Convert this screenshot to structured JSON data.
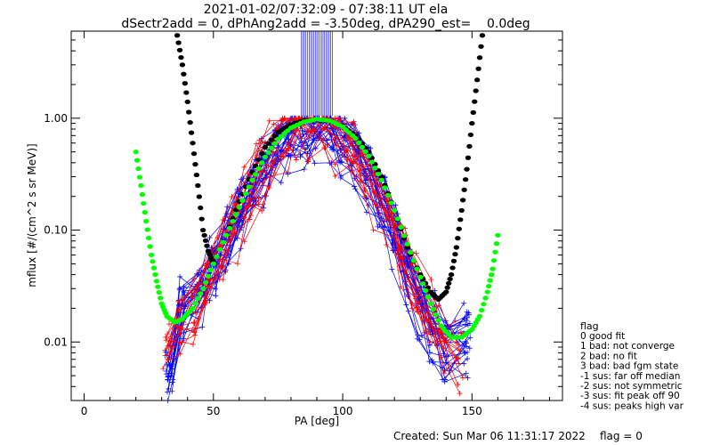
{
  "header": {
    "line1": "2021-01-02/07:32:09 - 07:38:11 UT ela",
    "line2": "dSectr2add = 0, dPhAng2add = -3.50deg, dPA290_est=    0.0deg"
  },
  "footer": {
    "created": "Created: Sun Mar 06 11:31:17 2022",
    "flag": "flag = 0"
  },
  "legend": {
    "title": "flag",
    "items": [
      " 0 good fit",
      " 1 bad: not converge",
      " 2 bad: no fit",
      " 3 bad: bad fgm state",
      "-1 sus: far off median",
      "-2 sus: not symmetric",
      "-3 sus: fit peak off 90",
      "-4 sus: peaks high var"
    ]
  },
  "colors": {
    "red": "#ff0000",
    "blue": "#0000ff",
    "black": "#000000",
    "green": "#00ff00"
  },
  "chart_data": {
    "type": "line",
    "title": "",
    "xlabel": "PA [deg]",
    "ylabel": "mflux [#/(cm^2 s sr MeV)]",
    "xlim": [
      -5,
      185
    ],
    "ylim": [
      0.003,
      6.0
    ],
    "yscale": "log",
    "xticks": [
      0,
      50,
      100,
      150
    ],
    "yticks": [
      {
        "value": 0.01,
        "label": "0.01"
      },
      {
        "value": 0.1,
        "label": "0.10"
      },
      {
        "value": 1.0,
        "label": "1.00"
      }
    ],
    "series": [
      {
        "color": "blue",
        "style": "line+plus",
        "description_curves": "many angular distributions",
        "points": [
          [
            33,
            0.006
          ],
          [
            38,
            0.02
          ],
          [
            45,
            0.03
          ],
          [
            50,
            0.05
          ],
          [
            55,
            0.09
          ],
          [
            60,
            0.15
          ],
          [
            65,
            0.25
          ],
          [
            70,
            0.4
          ],
          [
            75,
            0.6
          ],
          [
            80,
            0.8
          ],
          [
            85,
            0.9
          ],
          [
            90,
            0.92
          ],
          [
            95,
            0.88
          ],
          [
            100,
            0.75
          ],
          [
            105,
            0.55
          ],
          [
            110,
            0.35
          ],
          [
            115,
            0.2
          ],
          [
            120,
            0.1
          ],
          [
            125,
            0.05
          ],
          [
            130,
            0.025
          ],
          [
            135,
            0.015
          ],
          [
            140,
            0.01
          ],
          [
            148,
            0.012
          ]
        ]
      },
      {
        "color": "red",
        "style": "line+plus",
        "points": [
          [
            32,
            0.01
          ],
          [
            37,
            0.015
          ],
          [
            43,
            0.02
          ],
          [
            48,
            0.04
          ],
          [
            53,
            0.07
          ],
          [
            58,
            0.12
          ],
          [
            63,
            0.2
          ],
          [
            68,
            0.35
          ],
          [
            73,
            0.55
          ],
          [
            78,
            0.75
          ],
          [
            83,
            0.9
          ],
          [
            88,
            0.95
          ],
          [
            93,
            0.9
          ],
          [
            98,
            0.8
          ],
          [
            103,
            0.6
          ],
          [
            108,
            0.4
          ],
          [
            113,
            0.25
          ],
          [
            118,
            0.14
          ],
          [
            123,
            0.07
          ],
          [
            128,
            0.035
          ],
          [
            133,
            0.02
          ],
          [
            138,
            0.012
          ],
          [
            145,
            0.008
          ]
        ]
      },
      {
        "color": "black",
        "style": "dots",
        "points": [
          [
            36,
            5.5
          ],
          [
            38,
            3.0
          ],
          [
            40,
            1.4
          ],
          [
            42,
            0.6
          ],
          [
            44,
            0.25
          ],
          [
            46,
            0.1
          ],
          [
            48,
            0.065
          ],
          [
            50,
            0.05
          ],
          [
            55,
            0.09
          ],
          [
            60,
            0.18
          ],
          [
            65,
            0.33
          ],
          [
            70,
            0.55
          ],
          [
            75,
            0.75
          ],
          [
            80,
            0.88
          ],
          [
            85,
            0.95
          ],
          [
            90,
            0.97
          ],
          [
            95,
            0.94
          ],
          [
            100,
            0.85
          ],
          [
            105,
            0.7
          ],
          [
            110,
            0.5
          ],
          [
            115,
            0.3
          ],
          [
            120,
            0.15
          ],
          [
            125,
            0.07
          ],
          [
            130,
            0.04
          ],
          [
            134,
            0.028
          ],
          [
            137,
            0.024
          ],
          [
            140,
            0.028
          ],
          [
            142,
            0.04
          ],
          [
            144,
            0.07
          ],
          [
            146,
            0.15
          ],
          [
            148,
            0.35
          ],
          [
            150,
            0.9
          ],
          [
            152,
            2.2
          ],
          [
            154,
            5.5
          ]
        ]
      },
      {
        "color": "green",
        "style": "dots",
        "points": [
          [
            20,
            0.5
          ],
          [
            22,
            0.25
          ],
          [
            24,
            0.12
          ],
          [
            26,
            0.06
          ],
          [
            28,
            0.035
          ],
          [
            30,
            0.022
          ],
          [
            32,
            0.017
          ],
          [
            35,
            0.015
          ],
          [
            38,
            0.016
          ],
          [
            42,
            0.02
          ],
          [
            46,
            0.03
          ],
          [
            50,
            0.05
          ],
          [
            55,
            0.09
          ],
          [
            60,
            0.16
          ],
          [
            65,
            0.28
          ],
          [
            70,
            0.45
          ],
          [
            75,
            0.65
          ],
          [
            80,
            0.82
          ],
          [
            85,
            0.93
          ],
          [
            90,
            0.98
          ],
          [
            95,
            0.95
          ],
          [
            100,
            0.84
          ],
          [
            105,
            0.66
          ],
          [
            110,
            0.46
          ],
          [
            115,
            0.28
          ],
          [
            120,
            0.15
          ],
          [
            125,
            0.075
          ],
          [
            130,
            0.038
          ],
          [
            134,
            0.022
          ],
          [
            138,
            0.014
          ],
          [
            142,
            0.011
          ],
          [
            146,
            0.011
          ],
          [
            150,
            0.013
          ],
          [
            153,
            0.017
          ],
          [
            156,
            0.028
          ],
          [
            158,
            0.045
          ],
          [
            160,
            0.09
          ]
        ]
      }
    ]
  }
}
